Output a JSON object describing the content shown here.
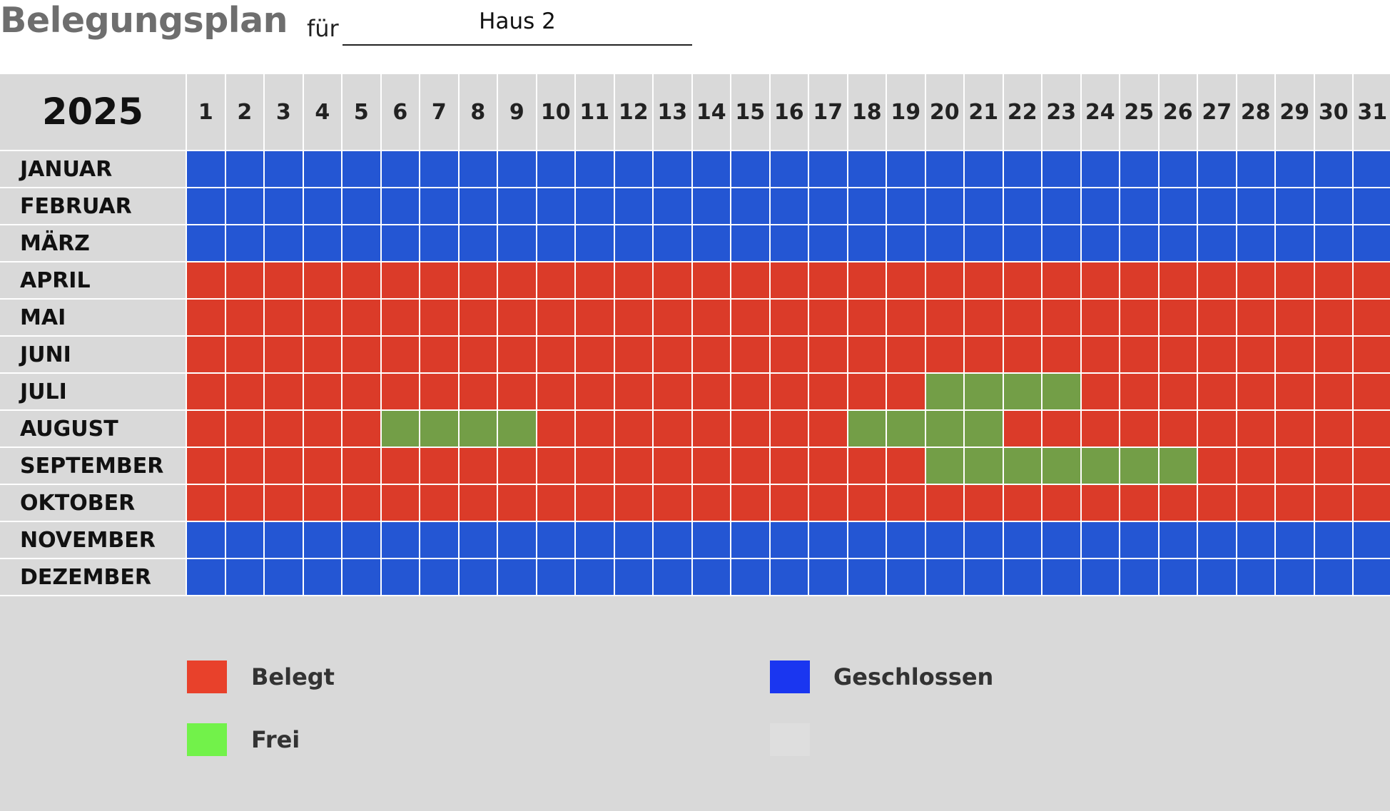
{
  "header": {
    "title": "Belegungsplan",
    "for_label": "für",
    "house": "Haus 2"
  },
  "calendar": {
    "year": "2025",
    "days": [
      "1",
      "2",
      "3",
      "4",
      "5",
      "6",
      "7",
      "8",
      "9",
      "10",
      "11",
      "12",
      "13",
      "14",
      "15",
      "16",
      "17",
      "18",
      "19",
      "20",
      "21",
      "22",
      "23",
      "24",
      "25",
      "26",
      "27",
      "28",
      "29",
      "30",
      "31"
    ],
    "months": [
      {
        "name": "JANUAR",
        "status": "closed",
        "free_ranges": []
      },
      {
        "name": "FEBRUAR",
        "status": "closed",
        "free_ranges": []
      },
      {
        "name": "MÄRZ",
        "status": "closed",
        "free_ranges": []
      },
      {
        "name": "APRIL",
        "status": "occupied",
        "free_ranges": []
      },
      {
        "name": "MAI",
        "status": "occupied",
        "free_ranges": []
      },
      {
        "name": "JUNI",
        "status": "occupied",
        "free_ranges": []
      },
      {
        "name": "JULI",
        "status": "occupied",
        "free_ranges": [
          [
            20,
            23
          ]
        ]
      },
      {
        "name": "AUGUST",
        "status": "occupied",
        "free_ranges": [
          [
            6,
            9
          ],
          [
            18,
            21
          ]
        ]
      },
      {
        "name": "SEPTEMBER",
        "status": "occupied",
        "free_ranges": [
          [
            20,
            26
          ]
        ]
      },
      {
        "name": "OKTOBER",
        "status": "occupied",
        "free_ranges": []
      },
      {
        "name": "NOVEMBER",
        "status": "closed",
        "free_ranges": []
      },
      {
        "name": "DEZEMBER",
        "status": "closed",
        "free_ranges": []
      }
    ]
  },
  "legend": {
    "occupied": {
      "label": "Belegt",
      "color": "#e8412b"
    },
    "free": {
      "label": "Frei",
      "color": "#72f24a"
    },
    "closed": {
      "label": "Geschlossen",
      "color": "#1a36f0"
    },
    "empty": {
      "label": "",
      "color": "#dedede"
    }
  },
  "colors": {
    "closed_cell": "#2456d3",
    "occupied_cell": "#db3b29",
    "free_cell": "#739e47",
    "background": "#d9d9d9"
  }
}
